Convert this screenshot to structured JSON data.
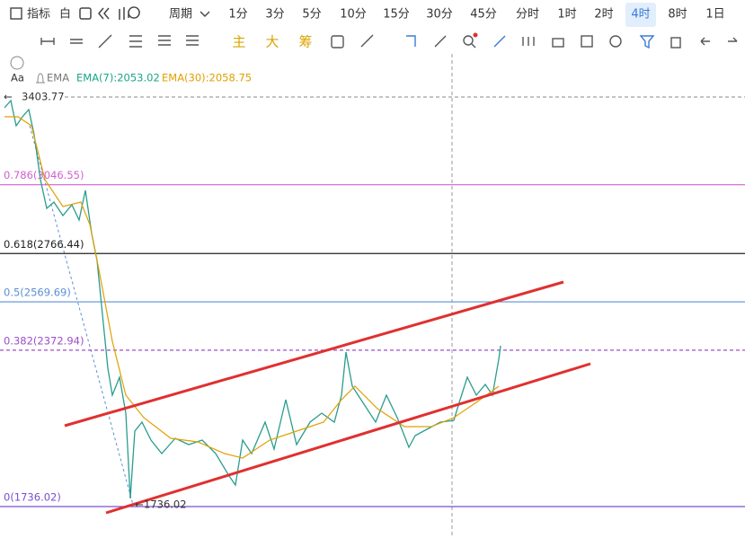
{
  "toolbar": {
    "indicator": "指标",
    "white": "白",
    "period": "周期",
    "periods": [
      "1分",
      "3分",
      "5分",
      "10分",
      "15分",
      "30分",
      "45分",
      "分时",
      "1时",
      "2时",
      "4时",
      "8时",
      "1日"
    ],
    "active_index": 10
  },
  "tools": {
    "labels": [
      "主",
      "大",
      "筹"
    ]
  },
  "legend": {
    "indicator": "EMA",
    "ema7": "EMA(7):2053.02",
    "ema30": "EMA(30):2058.75"
  },
  "chart": {
    "high": 3403.77,
    "low": 1736.02,
    "fib_levels": [
      {
        "label": "0.786(3046.55)",
        "price": 3046.55,
        "color": "#d060d0",
        "dashed": false
      },
      {
        "label": "0.618(2766.44)",
        "price": 2766.44,
        "color": "#222222",
        "dashed": false
      },
      {
        "label": "0.5(2569.69)",
        "price": 2569.69,
        "color": "#5b8fd6",
        "dashed": false
      },
      {
        "label": "0.382(2372.94)",
        "price": 2372.94,
        "color": "#9b4fc8",
        "dashed": true
      },
      {
        "label": "0(1736.02)",
        "price": 1736.02,
        "color": "#7b4fd0",
        "dashed": false
      }
    ]
  }
}
